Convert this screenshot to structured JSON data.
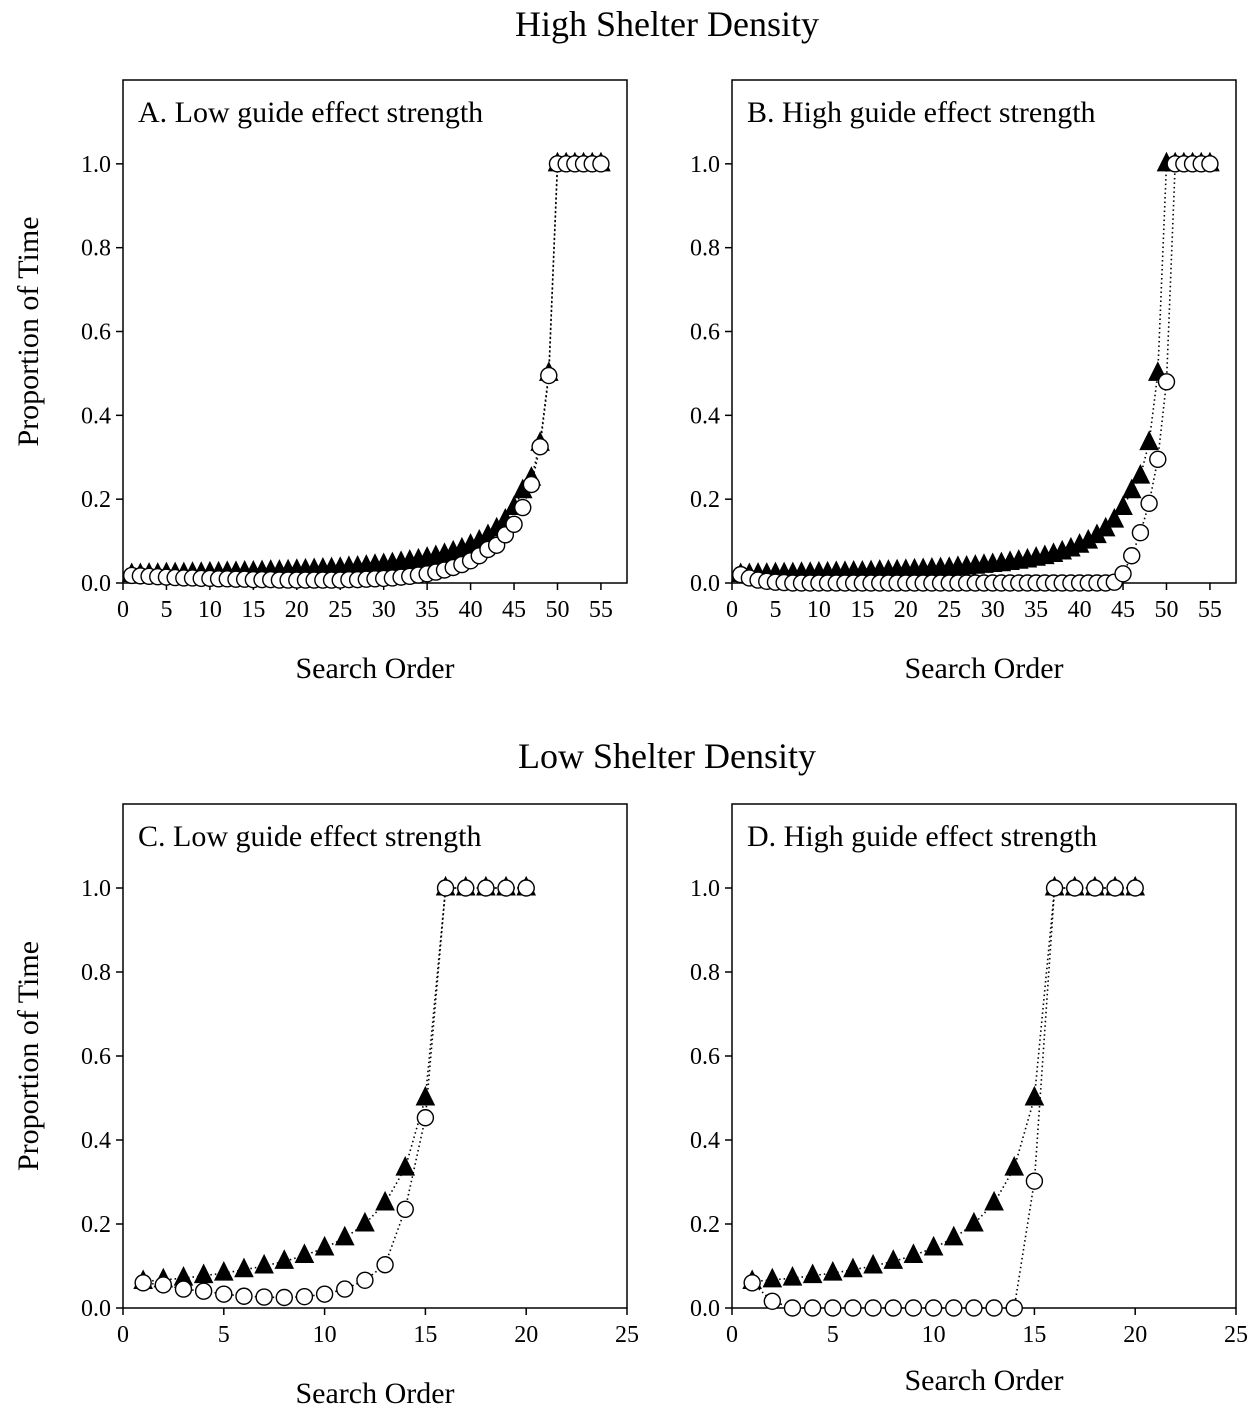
{
  "sections": [
    {
      "title": "High Shelter Density"
    },
    {
      "title": "Low Shelter Density"
    }
  ],
  "chart_data": [
    {
      "type": "scatter",
      "title": "A. Low guide effect strength",
      "xlabel": "Search Order",
      "ylabel": "Proportion of Time",
      "xlim": [
        0,
        58
      ],
      "ylim": [
        0,
        1.2
      ],
      "xticks": [
        0,
        5,
        10,
        15,
        20,
        25,
        30,
        35,
        40,
        45,
        50,
        55
      ],
      "yticks": [
        "0.0",
        "0.2",
        "0.4",
        "0.6",
        "0.8",
        "1.0"
      ],
      "grid": false,
      "series": [
        {
          "marker": "filled-triangle",
          "color": "#000000",
          "x": [
            1,
            2,
            3,
            4,
            5,
            6,
            7,
            8,
            9,
            10,
            11,
            12,
            13,
            14,
            15,
            16,
            17,
            18,
            19,
            20,
            21,
            22,
            23,
            24,
            25,
            26,
            27,
            28,
            29,
            30,
            31,
            32,
            33,
            34,
            35,
            36,
            37,
            38,
            39,
            40,
            41,
            42,
            43,
            44,
            45,
            46,
            47,
            48,
            49,
            50,
            51,
            52,
            53,
            54,
            55
          ],
          "y": [
            0.02,
            0.02,
            0.021,
            0.021,
            0.022,
            0.022,
            0.022,
            0.023,
            0.023,
            0.024,
            0.024,
            0.025,
            0.025,
            0.026,
            0.026,
            0.027,
            0.028,
            0.028,
            0.029,
            0.03,
            0.031,
            0.032,
            0.033,
            0.034,
            0.035,
            0.037,
            0.038,
            0.04,
            0.042,
            0.044,
            0.046,
            0.049,
            0.052,
            0.055,
            0.059,
            0.063,
            0.068,
            0.074,
            0.081,
            0.09,
            0.1,
            0.113,
            0.129,
            0.15,
            0.18,
            0.22,
            0.25,
            0.333,
            0.5,
            1.0,
            1.0,
            1.0,
            1.0,
            1.0,
            1.0
          ]
        },
        {
          "marker": "open-circle",
          "color": "#000000",
          "x": [
            1,
            2,
            3,
            4,
            5,
            6,
            7,
            8,
            9,
            10,
            11,
            12,
            13,
            14,
            15,
            16,
            17,
            18,
            19,
            20,
            21,
            22,
            23,
            24,
            25,
            26,
            27,
            28,
            29,
            30,
            31,
            32,
            33,
            34,
            35,
            36,
            37,
            38,
            39,
            40,
            41,
            42,
            43,
            44,
            45,
            46,
            47,
            48,
            49,
            50,
            51,
            52,
            53,
            54,
            55
          ],
          "y": [
            0.018,
            0.017,
            0.016,
            0.015,
            0.014,
            0.013,
            0.012,
            0.012,
            0.011,
            0.011,
            0.01,
            0.01,
            0.009,
            0.009,
            0.008,
            0.008,
            0.008,
            0.007,
            0.007,
            0.007,
            0.007,
            0.007,
            0.007,
            0.007,
            0.007,
            0.008,
            0.008,
            0.009,
            0.01,
            0.011,
            0.012,
            0.014,
            0.016,
            0.019,
            0.022,
            0.026,
            0.031,
            0.037,
            0.044,
            0.053,
            0.065,
            0.08,
            0.09,
            0.115,
            0.14,
            0.18,
            0.235,
            0.325,
            0.495,
            1.0,
            1.0,
            1.0,
            1.0,
            1.0,
            1.0
          ]
        }
      ]
    },
    {
      "type": "scatter",
      "title": "B. High guide effect strength",
      "xlabel": "Search Order",
      "ylabel": "",
      "xlim": [
        0,
        58
      ],
      "ylim": [
        0,
        1.2
      ],
      "xticks": [
        0,
        5,
        10,
        15,
        20,
        25,
        30,
        35,
        40,
        45,
        50,
        55
      ],
      "yticks": [
        "0.0",
        "0.2",
        "0.4",
        "0.6",
        "0.8",
        "1.0"
      ],
      "grid": false,
      "series": [
        {
          "marker": "filled-triangle",
          "color": "#000000",
          "x": [
            1,
            2,
            3,
            4,
            5,
            6,
            7,
            8,
            9,
            10,
            11,
            12,
            13,
            14,
            15,
            16,
            17,
            18,
            19,
            20,
            21,
            22,
            23,
            24,
            25,
            26,
            27,
            28,
            29,
            30,
            31,
            32,
            33,
            34,
            35,
            36,
            37,
            38,
            39,
            40,
            41,
            42,
            43,
            44,
            45,
            46,
            47,
            48,
            49,
            50,
            51,
            52,
            53,
            54,
            55
          ],
          "y": [
            0.02,
            0.02,
            0.021,
            0.021,
            0.022,
            0.022,
            0.022,
            0.023,
            0.023,
            0.024,
            0.024,
            0.025,
            0.025,
            0.026,
            0.026,
            0.027,
            0.028,
            0.028,
            0.029,
            0.03,
            0.031,
            0.032,
            0.033,
            0.034,
            0.035,
            0.037,
            0.038,
            0.04,
            0.042,
            0.044,
            0.046,
            0.049,
            0.052,
            0.055,
            0.059,
            0.063,
            0.068,
            0.074,
            0.081,
            0.09,
            0.1,
            0.113,
            0.129,
            0.15,
            0.18,
            0.22,
            0.255,
            0.335,
            0.5,
            1.0,
            1.0,
            1.0,
            1.0,
            1.0,
            1.0
          ]
        },
        {
          "marker": "open-circle",
          "color": "#000000",
          "x": [
            1,
            2,
            3,
            4,
            5,
            6,
            7,
            8,
            9,
            10,
            11,
            12,
            13,
            14,
            15,
            16,
            17,
            18,
            19,
            20,
            21,
            22,
            23,
            24,
            25,
            26,
            27,
            28,
            29,
            30,
            31,
            32,
            33,
            34,
            35,
            36,
            37,
            38,
            39,
            40,
            41,
            42,
            43,
            44,
            45,
            46,
            47,
            48,
            49,
            50,
            51,
            52,
            53,
            54,
            55
          ],
          "y": [
            0.02,
            0.012,
            0.007,
            0.004,
            0.002,
            0.001,
            0.0,
            0.0,
            0.0,
            0.0,
            0.0,
            0.0,
            0.0,
            0.0,
            0.0,
            0.0,
            0.0,
            0.0,
            0.0,
            0.0,
            0.0,
            0.0,
            0.0,
            0.0,
            0.0,
            0.0,
            0.0,
            0.0,
            0.0,
            0.0,
            0.0,
            0.0,
            0.0,
            0.0,
            0.0,
            0.0,
            0.0,
            0.0,
            0.0,
            0.0,
            0.0,
            0.0,
            0.0,
            0.002,
            0.022,
            0.065,
            0.12,
            0.19,
            0.295,
            0.48,
            1.0,
            1.0,
            1.0,
            1.0,
            1.0
          ]
        }
      ]
    },
    {
      "type": "scatter",
      "title": "C. Low guide effect strength",
      "xlabel": "Search Order",
      "ylabel": "Proportion of Time",
      "xlim": [
        0,
        25
      ],
      "ylim": [
        0,
        1.2
      ],
      "xticks": [
        0,
        5,
        10,
        15,
        20,
        25
      ],
      "yticks": [
        "0.0",
        "0.2",
        "0.4",
        "0.6",
        "0.8",
        "1.0"
      ],
      "grid": false,
      "series": [
        {
          "marker": "filled-triangle",
          "color": "#000000",
          "x": [
            1,
            2,
            3,
            4,
            5,
            6,
            7,
            8,
            9,
            10,
            11,
            12,
            13,
            14,
            15,
            16,
            17,
            18,
            19,
            20
          ],
          "y": [
            0.063,
            0.067,
            0.071,
            0.077,
            0.083,
            0.091,
            0.1,
            0.111,
            0.125,
            0.143,
            0.167,
            0.2,
            0.25,
            0.333,
            0.5,
            1.0,
            1.0,
            1.0,
            1.0,
            1.0
          ]
        },
        {
          "marker": "open-circle",
          "color": "#000000",
          "x": [
            1,
            2,
            3,
            4,
            5,
            6,
            7,
            8,
            9,
            10,
            11,
            12,
            13,
            14,
            15,
            16,
            17,
            18,
            19,
            20
          ],
          "y": [
            0.06,
            0.055,
            0.045,
            0.04,
            0.033,
            0.028,
            0.026,
            0.025,
            0.027,
            0.033,
            0.045,
            0.066,
            0.103,
            0.235,
            0.453,
            1.0,
            1.0,
            1.0,
            1.0,
            1.0
          ]
        }
      ]
    },
    {
      "type": "scatter",
      "title": "D. High guide effect strength",
      "xlabel": "Search Order",
      "ylabel": "",
      "xlim": [
        0,
        25
      ],
      "ylim": [
        0,
        1.2
      ],
      "xticks": [
        0,
        5,
        10,
        15,
        20,
        25
      ],
      "yticks": [
        "0.0",
        "0.2",
        "0.4",
        "0.6",
        "0.8",
        "1.0"
      ],
      "grid": false,
      "series": [
        {
          "marker": "filled-triangle",
          "color": "#000000",
          "x": [
            1,
            2,
            3,
            4,
            5,
            6,
            7,
            8,
            9,
            10,
            11,
            12,
            13,
            14,
            15,
            16,
            17,
            18,
            19,
            20
          ],
          "y": [
            0.063,
            0.067,
            0.071,
            0.077,
            0.083,
            0.091,
            0.1,
            0.111,
            0.125,
            0.143,
            0.167,
            0.2,
            0.25,
            0.333,
            0.5,
            1.0,
            1.0,
            1.0,
            1.0,
            1.0
          ]
        },
        {
          "marker": "open-circle",
          "color": "#000000",
          "x": [
            1,
            2,
            3,
            4,
            5,
            6,
            7,
            8,
            9,
            10,
            11,
            12,
            13,
            14,
            15,
            16,
            17,
            18,
            19,
            20
          ],
          "y": [
            0.06,
            0.016,
            0.0,
            0.0,
            0.0,
            0.0,
            0.0,
            0.0,
            0.0,
            0.0,
            0.0,
            0.0,
            0.0,
            0.0,
            0.302,
            1.0,
            1.0,
            1.0,
            1.0,
            1.0
          ]
        }
      ]
    }
  ]
}
